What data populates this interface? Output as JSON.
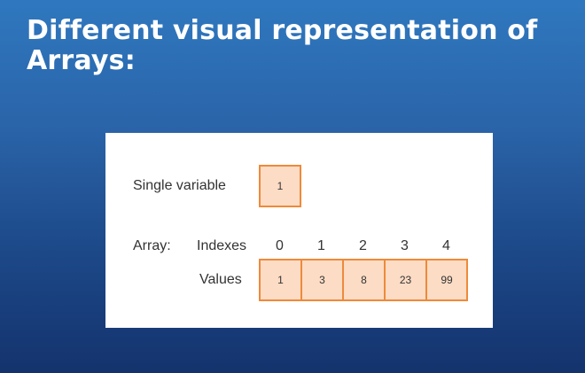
{
  "title": "Different visual representation of Arrays:",
  "diagram": {
    "single_variable": {
      "label": "Single variable",
      "value": "1"
    },
    "array": {
      "label": "Array:",
      "indexes_label": "Indexes",
      "values_label": "Values",
      "indexes": [
        "0",
        "1",
        "2",
        "3",
        "4"
      ],
      "values": [
        "1",
        "3",
        "8",
        "23",
        "99"
      ]
    },
    "colors": {
      "cell_fill": "#fcdcc5",
      "cell_border": "#ee8a3a"
    }
  }
}
